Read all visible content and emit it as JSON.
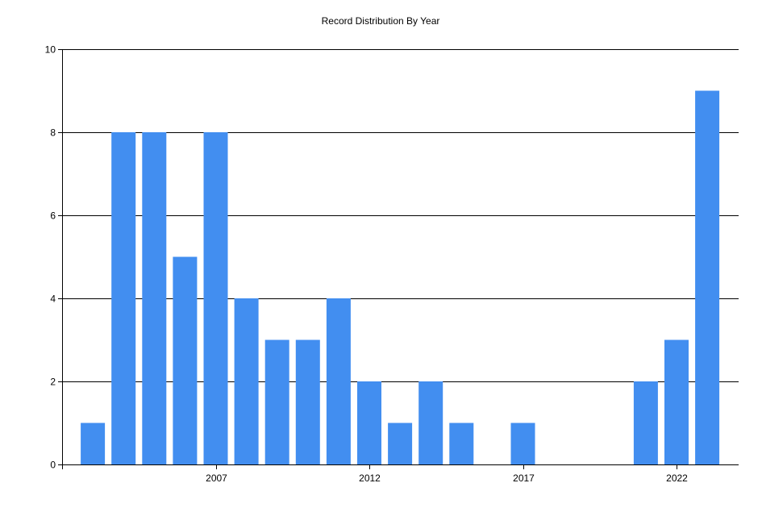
{
  "chart_data": {
    "type": "bar",
    "title": "Record Distribution By Year",
    "xlabel": "",
    "ylabel": "",
    "x_range": [
      2002,
      2024
    ],
    "ylim": [
      0,
      10
    ],
    "y_ticks": [
      0,
      2,
      4,
      6,
      8,
      10
    ],
    "x_ticks": [
      2007,
      2012,
      2017,
      2022
    ],
    "grid": true,
    "bar_color": "#428ef0",
    "series": [
      {
        "years": [
          2003,
          2004,
          2005,
          2006,
          2007,
          2008,
          2009,
          2010,
          2011,
          2012,
          2013,
          2014,
          2015,
          2016,
          2017,
          2018,
          2019,
          2020,
          2021,
          2022,
          2023
        ],
        "values": [
          1,
          8,
          8,
          5,
          8,
          4,
          3,
          3,
          4,
          2,
          1,
          2,
          1,
          0,
          1,
          0,
          0,
          0,
          2,
          3,
          9
        ]
      }
    ]
  }
}
